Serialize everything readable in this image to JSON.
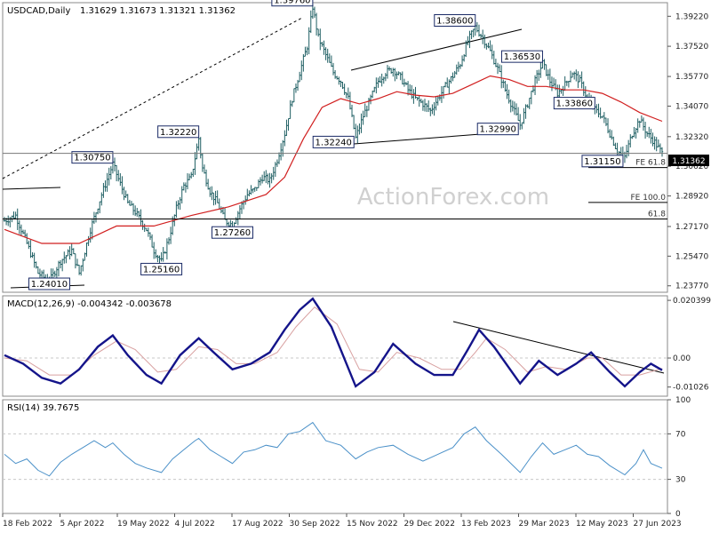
{
  "header": {
    "symbol": "USDCAD,Daily",
    "ohlc": "1.31629 1.31673 1.31321 1.31362"
  },
  "watermark": "ActionForex.com",
  "colors": {
    "candles": "#1f5f63",
    "ma": "#d11f1f",
    "macd": "#14148a",
    "signal": "#d8a0a0",
    "rsi": "#4a90c8",
    "grid": "#c8c8c8",
    "axis_text": "#222222"
  },
  "chart_data": [
    {
      "type": "line",
      "name": "price",
      "title": "USDCAD,Daily",
      "ylim": [
        1.234,
        1.4
      ],
      "y_ticks": [
        1.3922,
        1.375,
        1.3577,
        1.3407,
        1.3232,
        1.3062,
        1.2892,
        1.2717,
        1.2547,
        1.2377
      ],
      "y_tick_labels": [
        "1.39220",
        "1.37520",
        "1.35770",
        "1.34070",
        "1.32320",
        "1.30620",
        "1.28920",
        "1.27170",
        "1.25470",
        "1.23770"
      ],
      "x_labels": [
        "18 Feb 2022",
        "5 Apr 2022",
        "19 May 2022",
        "4 Jul 2022",
        "17 Aug 2022",
        "30 Sep 2022",
        "15 Nov 2022",
        "29 Dec 2022",
        "13 Feb 2023",
        "29 Mar 2023",
        "12 May 2023",
        "27 Jun 2023"
      ],
      "current_price": "1.31362",
      "price_path": [
        [
          0,
          1.275
        ],
        [
          6,
          1.278
        ],
        [
          12,
          1.262
        ],
        [
          18,
          1.245
        ],
        [
          24,
          1.2401
        ],
        [
          30,
          1.252
        ],
        [
          36,
          1.258
        ],
        [
          40,
          1.245
        ],
        [
          46,
          1.27
        ],
        [
          52,
          1.29
        ],
        [
          58,
          1.3075
        ],
        [
          62,
          1.296
        ],
        [
          66,
          1.285
        ],
        [
          70,
          1.28
        ],
        [
          76,
          1.27
        ],
        [
          80,
          1.258
        ],
        [
          84,
          1.2516
        ],
        [
          88,
          1.265
        ],
        [
          92,
          1.282
        ],
        [
          96,
          1.295
        ],
        [
          100,
          1.3
        ],
        [
          104,
          1.3222
        ],
        [
          106,
          1.305
        ],
        [
          110,
          1.292
        ],
        [
          114,
          1.285
        ],
        [
          118,
          1.275
        ],
        [
          122,
          1.2726
        ],
        [
          126,
          1.282
        ],
        [
          130,
          1.29
        ],
        [
          134,
          1.293
        ],
        [
          138,
          1.3
        ],
        [
          142,
          1.298
        ],
        [
          146,
          1.31
        ],
        [
          150,
          1.325
        ],
        [
          154,
          1.345
        ],
        [
          158,
          1.36
        ],
        [
          162,
          1.375
        ],
        [
          165,
          1.3976
        ],
        [
          168,
          1.38
        ],
        [
          172,
          1.37
        ],
        [
          176,
          1.36
        ],
        [
          180,
          1.355
        ],
        [
          184,
          1.345
        ],
        [
          188,
          1.3224
        ],
        [
          192,
          1.335
        ],
        [
          196,
          1.345
        ],
        [
          200,
          1.355
        ],
        [
          204,
          1.36
        ],
        [
          208,
          1.362
        ],
        [
          212,
          1.357
        ],
        [
          216,
          1.35
        ],
        [
          220,
          1.345
        ],
        [
          224,
          1.342
        ],
        [
          228,
          1.338
        ],
        [
          232,
          1.345
        ],
        [
          236,
          1.352
        ],
        [
          240,
          1.358
        ],
        [
          244,
          1.365
        ],
        [
          248,
          1.378
        ],
        [
          252,
          1.386
        ],
        [
          256,
          1.38
        ],
        [
          260,
          1.372
        ],
        [
          264,
          1.362
        ],
        [
          268,
          1.35
        ],
        [
          272,
          1.34
        ],
        [
          276,
          1.3299
        ],
        [
          280,
          1.342
        ],
        [
          284,
          1.355
        ],
        [
          288,
          1.3653
        ],
        [
          292,
          1.355
        ],
        [
          296,
          1.348
        ],
        [
          300,
          1.353
        ],
        [
          304,
          1.36
        ],
        [
          308,
          1.355
        ],
        [
          312,
          1.345
        ],
        [
          316,
          1.3386
        ],
        [
          320,
          1.335
        ],
        [
          324,
          1.325
        ],
        [
          328,
          1.315
        ],
        [
          332,
          1.3115
        ],
        [
          336,
          1.325
        ],
        [
          340,
          1.333
        ],
        [
          344,
          1.325
        ],
        [
          348,
          1.32
        ],
        [
          352,
          1.31362
        ]
      ],
      "ma_path": [
        [
          0,
          1.27
        ],
        [
          20,
          1.262
        ],
        [
          40,
          1.262
        ],
        [
          60,
          1.272
        ],
        [
          80,
          1.272
        ],
        [
          100,
          1.278
        ],
        [
          120,
          1.283
        ],
        [
          140,
          1.29
        ],
        [
          150,
          1.3
        ],
        [
          160,
          1.322
        ],
        [
          170,
          1.34
        ],
        [
          180,
          1.345
        ],
        [
          190,
          1.342
        ],
        [
          200,
          1.345
        ],
        [
          210,
          1.349
        ],
        [
          220,
          1.347
        ],
        [
          230,
          1.346
        ],
        [
          240,
          1.348
        ],
        [
          250,
          1.353
        ],
        [
          260,
          1.358
        ],
        [
          270,
          1.356
        ],
        [
          280,
          1.352
        ],
        [
          290,
          1.352
        ],
        [
          300,
          1.35
        ],
        [
          310,
          1.35
        ],
        [
          320,
          1.348
        ],
        [
          330,
          1.343
        ],
        [
          340,
          1.337
        ],
        [
          352,
          1.332
        ]
      ],
      "annotations": [
        {
          "label": "1.39760",
          "x": 165,
          "y": 1.3976
        },
        {
          "label": "1.38600",
          "x": 252,
          "y": 1.386
        },
        {
          "label": "1.36530",
          "x": 288,
          "y": 1.3653
        },
        {
          "label": "1.33860",
          "x": 316,
          "y": 1.3386
        },
        {
          "label": "1.32990",
          "x": 276,
          "y": 1.3299
        },
        {
          "label": "1.32240",
          "x": 188,
          "y": 1.3224
        },
        {
          "label": "1.32220",
          "x": 104,
          "y": 1.3222
        },
        {
          "label": "1.31150",
          "x": 332,
          "y": 1.3115
        },
        {
          "label": "1.30750",
          "x": 58,
          "y": 1.3075
        },
        {
          "label": "1.27260",
          "x": 122,
          "y": 1.2726
        },
        {
          "label": "1.25160",
          "x": 84,
          "y": 1.2516
        },
        {
          "label": "1.24010",
          "x": 24,
          "y": 1.2401
        }
      ],
      "fib_labels": [
        {
          "label": "FE 61.8",
          "y": 1.3055
        },
        {
          "label": "FE 100.0",
          "y": 1.2855
        },
        {
          "label": "61.8",
          "y": 1.276
        }
      ]
    },
    {
      "type": "line",
      "name": "macd",
      "title": "MACD(12,26,9) -0.004342 -0.003678",
      "ylim": [
        -0.0135,
        0.022
      ],
      "y_ticks": [
        0.020399,
        0.0,
        -0.01026
      ],
      "y_tick_labels": [
        "0.020399",
        "0.00",
        "-0.01026"
      ],
      "zero_label": "0.00",
      "macd_path": [
        [
          0,
          0.001
        ],
        [
          10,
          -0.002
        ],
        [
          20,
          -0.007
        ],
        [
          30,
          -0.009
        ],
        [
          40,
          -0.004
        ],
        [
          50,
          0.004
        ],
        [
          58,
          0.008
        ],
        [
          66,
          0.001
        ],
        [
          76,
          -0.006
        ],
        [
          84,
          -0.009
        ],
        [
          94,
          0.001
        ],
        [
          104,
          0.007
        ],
        [
          112,
          0.002
        ],
        [
          122,
          -0.004
        ],
        [
          132,
          -0.002
        ],
        [
          142,
          0.002
        ],
        [
          150,
          0.01
        ],
        [
          158,
          0.017
        ],
        [
          165,
          0.021
        ],
        [
          175,
          0.011
        ],
        [
          188,
          -0.01
        ],
        [
          198,
          -0.005
        ],
        [
          208,
          0.005
        ],
        [
          220,
          -0.002
        ],
        [
          230,
          -0.006
        ],
        [
          240,
          -0.006
        ],
        [
          248,
          0.003
        ],
        [
          254,
          0.01
        ],
        [
          262,
          0.004
        ],
        [
          276,
          -0.009
        ],
        [
          286,
          -0.001
        ],
        [
          296,
          -0.006
        ],
        [
          306,
          -0.002
        ],
        [
          314,
          0.002
        ],
        [
          324,
          -0.005
        ],
        [
          332,
          -0.01
        ],
        [
          340,
          -0.005
        ],
        [
          346,
          -0.002
        ],
        [
          352,
          -0.0043
        ]
      ],
      "signal_path": [
        [
          0,
          0.0
        ],
        [
          12,
          -0.001
        ],
        [
          24,
          -0.006
        ],
        [
          36,
          -0.006
        ],
        [
          48,
          0.001
        ],
        [
          60,
          0.006
        ],
        [
          70,
          0.003
        ],
        [
          82,
          -0.005
        ],
        [
          92,
          -0.004
        ],
        [
          104,
          0.004
        ],
        [
          114,
          0.003
        ],
        [
          124,
          -0.002
        ],
        [
          134,
          -0.002
        ],
        [
          146,
          0.002
        ],
        [
          156,
          0.011
        ],
        [
          166,
          0.018
        ],
        [
          178,
          0.012
        ],
        [
          190,
          -0.004
        ],
        [
          200,
          -0.005
        ],
        [
          210,
          0.002
        ],
        [
          222,
          0.0
        ],
        [
          234,
          -0.004
        ],
        [
          244,
          -0.004
        ],
        [
          252,
          0.002
        ],
        [
          258,
          0.007
        ],
        [
          268,
          0.003
        ],
        [
          280,
          -0.005
        ],
        [
          290,
          -0.003
        ],
        [
          300,
          -0.004
        ],
        [
          312,
          0.0
        ],
        [
          320,
          0.0
        ],
        [
          330,
          -0.006
        ],
        [
          340,
          -0.006
        ],
        [
          352,
          -0.0037
        ]
      ]
    },
    {
      "type": "line",
      "name": "rsi",
      "title": "RSI(14) 39.7675",
      "ylim": [
        0,
        100
      ],
      "y_ticks": [
        100,
        70,
        30,
        0
      ],
      "y_tick_labels": [
        "100",
        "70",
        "30",
        "0"
      ],
      "rsi_path": [
        [
          0,
          52
        ],
        [
          6,
          44
        ],
        [
          12,
          48
        ],
        [
          18,
          38
        ],
        [
          24,
          33
        ],
        [
          30,
          45
        ],
        [
          36,
          52
        ],
        [
          42,
          58
        ],
        [
          48,
          64
        ],
        [
          54,
          58
        ],
        [
          58,
          62
        ],
        [
          64,
          52
        ],
        [
          70,
          44
        ],
        [
          76,
          40
        ],
        [
          84,
          36
        ],
        [
          90,
          48
        ],
        [
          96,
          56
        ],
        [
          102,
          64
        ],
        [
          104,
          66
        ],
        [
          110,
          56
        ],
        [
          116,
          50
        ],
        [
          122,
          44
        ],
        [
          128,
          54
        ],
        [
          134,
          56
        ],
        [
          140,
          60
        ],
        [
          146,
          58
        ],
        [
          152,
          70
        ],
        [
          158,
          72
        ],
        [
          165,
          80
        ],
        [
          172,
          64
        ],
        [
          180,
          60
        ],
        [
          188,
          48
        ],
        [
          194,
          54
        ],
        [
          200,
          58
        ],
        [
          208,
          60
        ],
        [
          216,
          52
        ],
        [
          224,
          46
        ],
        [
          232,
          52
        ],
        [
          240,
          58
        ],
        [
          246,
          70
        ],
        [
          252,
          76
        ],
        [
          258,
          64
        ],
        [
          266,
          52
        ],
        [
          276,
          36
        ],
        [
          282,
          50
        ],
        [
          288,
          62
        ],
        [
          294,
          52
        ],
        [
          300,
          56
        ],
        [
          306,
          60
        ],
        [
          312,
          52
        ],
        [
          318,
          50
        ],
        [
          324,
          42
        ],
        [
          332,
          34
        ],
        [
          338,
          44
        ],
        [
          342,
          56
        ],
        [
          346,
          44
        ],
        [
          352,
          39.77
        ]
      ]
    }
  ]
}
